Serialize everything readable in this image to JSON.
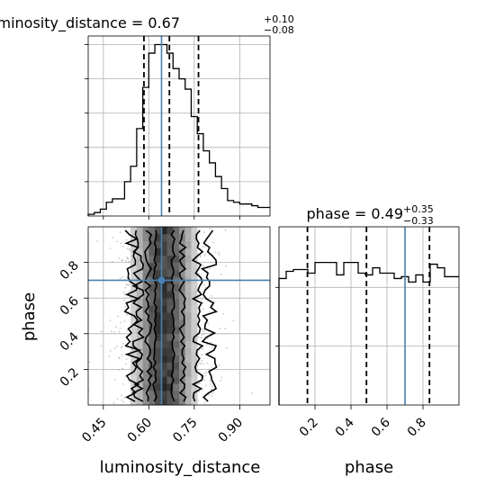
{
  "chart_data": {
    "type": "corner",
    "parameters": [
      "luminosity_distance",
      "phase"
    ],
    "injection": {
      "luminosity_distance": 0.642,
      "phase": 0.7
    },
    "colors": {
      "truth": "#4682b4",
      "hist": "#000000",
      "grid": "#b0b0b0"
    },
    "grid": true,
    "panels": [
      {
        "id": "luminosity_distance_1d",
        "title": "luminosity_distance = 0.67",
        "title_sup": "+0.10",
        "title_sub": "−0.08",
        "xlim": [
          0.4,
          1.0
        ],
        "ylim": [
          0,
          1.05
        ],
        "xticks": [
          0.45,
          0.6,
          0.75,
          0.9
        ],
        "quantiles": [
          0.584,
          0.668,
          0.764
        ],
        "truth": 0.642,
        "hist": {
          "edges": [
            0.4,
            0.42,
            0.44,
            0.46,
            0.48,
            0.5,
            0.52,
            0.54,
            0.56,
            0.58,
            0.6,
            0.62,
            0.64,
            0.66,
            0.68,
            0.7,
            0.72,
            0.74,
            0.76,
            0.78,
            0.8,
            0.82,
            0.84,
            0.86,
            0.88,
            0.9,
            0.92,
            0.94,
            0.96,
            0.98,
            1.0
          ],
          "heights": [
            0.01,
            0.02,
            0.04,
            0.08,
            0.1,
            0.1,
            0.2,
            0.29,
            0.51,
            0.75,
            0.95,
            1.0,
            1.0,
            0.95,
            0.86,
            0.8,
            0.74,
            0.58,
            0.48,
            0.38,
            0.31,
            0.23,
            0.16,
            0.09,
            0.08,
            0.07,
            0.07,
            0.06,
            0.05,
            0.05
          ]
        }
      },
      {
        "id": "phase_1d",
        "title": "phase = 0.49",
        "title_sup": "+0.35",
        "title_sub": "−0.33",
        "xlim": [
          0.0,
          1.0
        ],
        "ylim": [
          0,
          1.0
        ],
        "xticks": [
          0.2,
          0.4,
          0.6,
          0.8
        ],
        "quantiles": [
          0.158,
          0.486,
          0.836
        ],
        "truth": 0.7,
        "hist": {
          "edges": [
            0.0,
            0.04,
            0.08,
            0.12,
            0.16,
            0.2,
            0.24,
            0.28,
            0.32,
            0.36,
            0.4,
            0.44,
            0.48,
            0.52,
            0.56,
            0.6,
            0.64,
            0.68,
            0.72,
            0.76,
            0.8,
            0.84,
            0.88,
            0.92,
            0.96,
            1.0
          ],
          "heights": [
            0.71,
            0.75,
            0.76,
            0.76,
            0.74,
            0.8,
            0.8,
            0.8,
            0.73,
            0.8,
            0.8,
            0.74,
            0.73,
            0.77,
            0.74,
            0.74,
            0.71,
            0.72,
            0.69,
            0.73,
            0.69,
            0.79,
            0.77,
            0.72,
            0.72
          ]
        }
      },
      {
        "id": "luminosity_distance_vs_phase_2d",
        "xlabel": "luminosity_distance",
        "ylabel": "phase",
        "xlim": [
          0.4,
          1.0
        ],
        "ylim": [
          0.0,
          1.0
        ],
        "xticks": [
          0.45,
          0.6,
          0.75,
          0.9
        ],
        "yticks": [
          0.2,
          0.4,
          0.6,
          0.8
        ],
        "truth": {
          "x": 0.642,
          "y": 0.7
        },
        "density": {
          "x_edges": [
            0.54,
            0.56,
            0.58,
            0.6,
            0.62,
            0.64,
            0.66,
            0.68,
            0.7,
            0.72,
            0.74,
            0.76
          ],
          "column_weights": [
            0.15,
            0.3,
            0.55,
            0.8,
            0.98,
            1.0,
            0.92,
            0.78,
            0.58,
            0.35,
            0.18
          ],
          "contours": [
            {
              "level": 0.39,
              "x_range": [
                0.62,
                0.68
              ]
            },
            {
              "level": 0.86,
              "x_range": [
                0.598,
                0.712
              ]
            },
            {
              "level": 0.99,
              "x_range": [
                0.566,
                0.762
              ]
            },
            {
              "level": 0.999,
              "x_range": [
                0.545,
                0.8
              ]
            }
          ]
        }
      },
      {
        "id": "phase_xaxis",
        "xlabel": "phase"
      }
    ]
  }
}
